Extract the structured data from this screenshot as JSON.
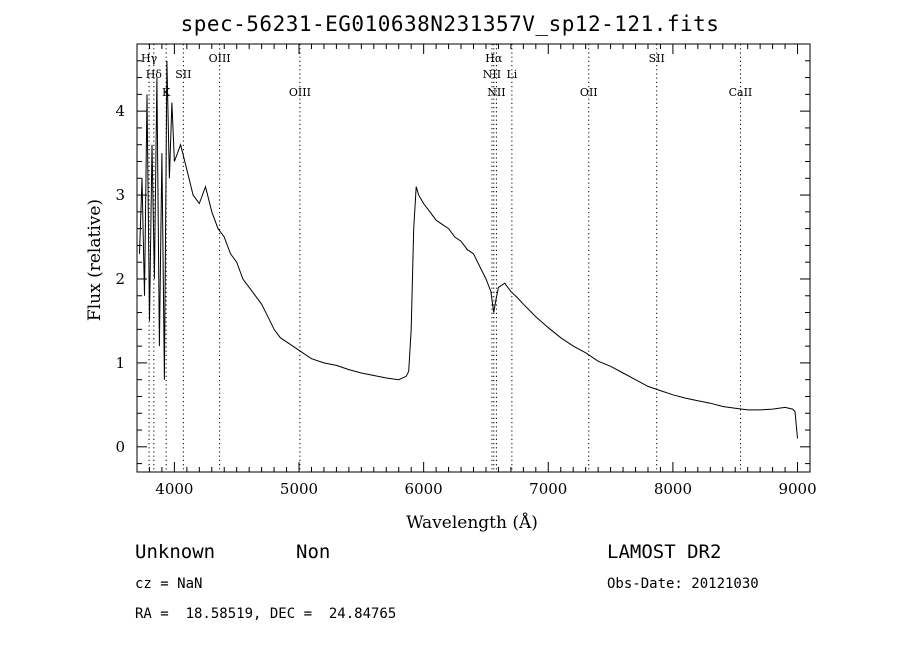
{
  "chart_data": {
    "type": "line",
    "title": "spec-56231-EG010638N231357V_sp12-121.fits",
    "xlabel": "Wavelength (Å)",
    "ylabel": "Flux (relative)",
    "xlim": [
      3700,
      9100
    ],
    "ylim": [
      -0.3,
      4.8
    ],
    "x_ticks": [
      4000,
      5000,
      6000,
      7000,
      8000,
      9000
    ],
    "y_ticks": [
      0,
      1,
      2,
      3,
      4
    ],
    "grid": false,
    "series": [
      {
        "x": [
          3720,
          3740,
          3760,
          3780,
          3800,
          3820,
          3840,
          3860,
          3880,
          3900,
          3920,
          3940,
          3960,
          3980,
          4000,
          4050,
          4100,
          4150,
          4200,
          4250,
          4300,
          4350,
          4400,
          4450,
          4500,
          4550,
          4600,
          4650,
          4700,
          4750,
          4800,
          4850,
          4900,
          4950,
          5000,
          5100,
          5200,
          5300,
          5400,
          5500,
          5600,
          5700,
          5800,
          5860,
          5880,
          5900,
          5920,
          5940,
          5960,
          6000,
          6050,
          6100,
          6150,
          6200,
          6250,
          6300,
          6350,
          6400,
          6450,
          6500,
          6540,
          6562,
          6580,
          6600,
          6650,
          6700,
          6750,
          6800,
          6900,
          7000,
          7100,
          7200,
          7300,
          7400,
          7500,
          7600,
          7700,
          7800,
          7900,
          8000,
          8100,
          8200,
          8300,
          8400,
          8500,
          8600,
          8700,
          8800,
          8900,
          8960,
          8980,
          9000
        ],
        "y": [
          2.3,
          3.2,
          1.8,
          4.2,
          1.5,
          3.6,
          2.0,
          4.4,
          1.2,
          3.5,
          0.8,
          4.6,
          3.2,
          4.1,
          3.4,
          3.6,
          3.3,
          3.0,
          2.9,
          3.1,
          2.8,
          2.6,
          2.5,
          2.3,
          2.2,
          2.0,
          1.9,
          1.8,
          1.7,
          1.55,
          1.4,
          1.3,
          1.25,
          1.2,
          1.15,
          1.05,
          1.0,
          0.97,
          0.92,
          0.88,
          0.85,
          0.82,
          0.8,
          0.84,
          0.9,
          1.4,
          2.6,
          3.1,
          3.0,
          2.9,
          2.8,
          2.7,
          2.65,
          2.6,
          2.5,
          2.45,
          2.35,
          2.3,
          2.15,
          2.0,
          1.85,
          1.6,
          1.75,
          1.9,
          1.95,
          1.85,
          1.78,
          1.7,
          1.55,
          1.42,
          1.3,
          1.2,
          1.12,
          1.02,
          0.96,
          0.88,
          0.8,
          0.72,
          0.67,
          0.62,
          0.58,
          0.55,
          0.52,
          0.48,
          0.46,
          0.44,
          0.44,
          0.45,
          0.47,
          0.45,
          0.42,
          0.1
        ]
      }
    ],
    "lines": [
      {
        "label": "Hγ",
        "x": 3797,
        "row": 0
      },
      {
        "label": "Hδ",
        "x": 3835,
        "row": 1
      },
      {
        "label": "K",
        "x": 3934,
        "row": 2
      },
      {
        "label": "SII",
        "x": 4072,
        "row": 1
      },
      {
        "label": "OIII",
        "x": 4363,
        "row": 0
      },
      {
        "label": "OIII",
        "x": 5007,
        "row": 2
      },
      {
        "label": "Hα",
        "x": 6563,
        "row": 0
      },
      {
        "label": "NII",
        "x": 6548,
        "row": 1
      },
      {
        "label": "Li",
        "x": 6708,
        "row": 1
      },
      {
        "label": "NII",
        "x": 6584,
        "row": 2
      },
      {
        "label": "OII",
        "x": 7325,
        "row": 2
      },
      {
        "label": "SII",
        "x": 7870,
        "row": 0
      },
      {
        "label": "CaII",
        "x": 8542,
        "row": 2
      }
    ]
  },
  "info": {
    "class_label": "Unknown",
    "subclass_label": "Non",
    "survey": "LAMOST DR2",
    "cz": "cz = NaN",
    "obs_date": "Obs-Date: 20121030",
    "coords": "RA =  18.58519, DEC =  24.84765"
  }
}
